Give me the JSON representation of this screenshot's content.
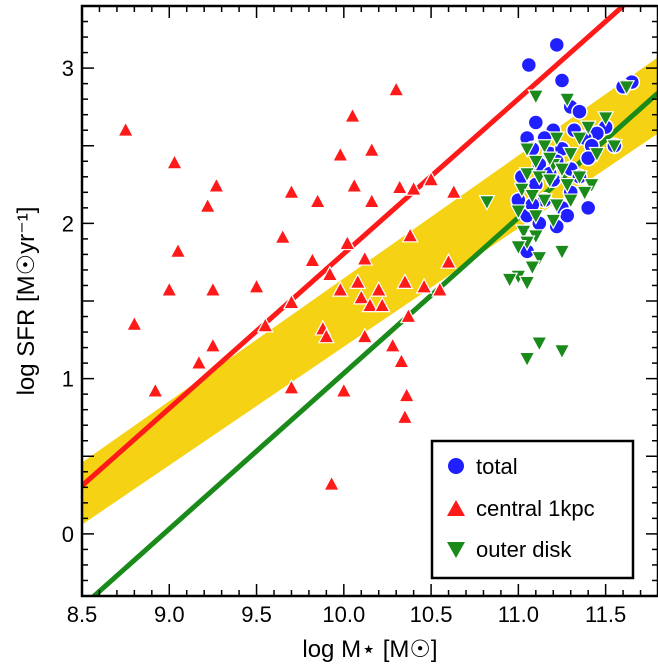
{
  "chart_data": {
    "type": "scatter",
    "title": "",
    "xlabel": "log M⋆ [M☉]",
    "ylabel": "log SFR [M☉yr⁻¹]",
    "xlim": [
      8.5,
      11.8
    ],
    "ylim": [
      -0.4,
      3.4
    ],
    "x_ticks": [
      "8.5",
      "9.0",
      "9.5",
      "10.0",
      "10.5",
      "11.0",
      "11.5"
    ],
    "y_ticks": [
      "0",
      "1",
      "2",
      "3"
    ],
    "legend_position": "bottom-right",
    "colors": {
      "total": "#1f1fff",
      "central": "#ff1a1a",
      "outer": "#1a8a1a",
      "band": "#f5d213",
      "red_line": "#ff1a1a",
      "green_line": "#1a8a1a"
    },
    "band": {
      "lower": [
        [
          8.5,
          0.06
        ],
        [
          11.8,
          2.58
        ]
      ],
      "upper": [
        [
          8.5,
          0.46
        ],
        [
          11.8,
          3.07
        ]
      ]
    },
    "lines": [
      {
        "color": "red",
        "points": [
          [
            8.5,
            0.31
          ],
          [
            11.6,
            3.4
          ]
        ]
      },
      {
        "color": "green",
        "points": [
          [
            8.5,
            -0.47
          ],
          [
            11.8,
            2.84
          ]
        ]
      }
    ],
    "series": [
      {
        "name": "total",
        "marker": "circle",
        "points": [
          [
            11.06,
            3.02
          ],
          [
            11.22,
            3.15
          ],
          [
            11.25,
            2.92
          ],
          [
            11.65,
            2.91
          ],
          [
            11.6,
            2.88
          ],
          [
            11.3,
            2.75
          ],
          [
            11.35,
            2.72
          ],
          [
            11.32,
            2.6
          ],
          [
            11.5,
            2.62
          ],
          [
            11.2,
            2.6
          ],
          [
            11.45,
            2.58
          ],
          [
            11.55,
            2.5
          ],
          [
            11.05,
            2.55
          ],
          [
            11.1,
            2.65
          ],
          [
            11.15,
            2.55
          ],
          [
            11.08,
            2.48
          ],
          [
            11.18,
            2.45
          ],
          [
            11.25,
            2.48
          ],
          [
            11.38,
            2.55
          ],
          [
            11.42,
            2.5
          ],
          [
            11.12,
            2.38
          ],
          [
            11.22,
            2.4
          ],
          [
            11.3,
            2.35
          ],
          [
            11.4,
            2.42
          ],
          [
            11.02,
            2.3
          ],
          [
            11.1,
            2.25
          ],
          [
            11.2,
            2.28
          ],
          [
            11.35,
            2.3
          ],
          [
            11.15,
            2.15
          ],
          [
            11.25,
            2.1
          ],
          [
            11.05,
            2.05
          ],
          [
            11.12,
            2.0
          ],
          [
            11.28,
            2.05
          ],
          [
            11.4,
            2.1
          ],
          [
            11.0,
            2.15
          ],
          [
            11.22,
            1.98
          ],
          [
            11.05,
            1.82
          ],
          [
            11.18,
            2.32
          ],
          [
            11.3,
            2.2
          ],
          [
            11.08,
            2.12
          ]
        ]
      },
      {
        "name": "central 1kpc",
        "marker": "triangle-up",
        "points": [
          [
            8.75,
            2.6
          ],
          [
            9.03,
            2.39
          ],
          [
            9.27,
            2.24
          ],
          [
            9.22,
            2.11
          ],
          [
            9.05,
            1.82
          ],
          [
            8.8,
            1.35
          ],
          [
            8.92,
            0.92
          ],
          [
            9.0,
            1.57
          ],
          [
            9.17,
            1.1
          ],
          [
            9.25,
            1.57
          ],
          [
            9.25,
            1.21
          ],
          [
            9.5,
            1.59
          ],
          [
            9.55,
            1.34
          ],
          [
            9.65,
            1.91
          ],
          [
            9.7,
            2.2
          ],
          [
            9.7,
            1.49
          ],
          [
            9.7,
            0.94
          ],
          [
            9.82,
            1.76
          ],
          [
            9.85,
            2.14
          ],
          [
            9.88,
            1.32
          ],
          [
            9.9,
            1.27
          ],
          [
            9.92,
            1.67
          ],
          [
            9.93,
            0.32
          ],
          [
            9.98,
            2.44
          ],
          [
            9.98,
            1.57
          ],
          [
            10.0,
            0.92
          ],
          [
            10.02,
            1.87
          ],
          [
            10.05,
            2.69
          ],
          [
            10.06,
            2.24
          ],
          [
            10.08,
            1.62
          ],
          [
            10.1,
            1.52
          ],
          [
            10.12,
            1.77
          ],
          [
            10.12,
            1.27
          ],
          [
            10.15,
            1.47
          ],
          [
            10.16,
            2.47
          ],
          [
            10.16,
            2.14
          ],
          [
            10.2,
            1.57
          ],
          [
            10.22,
            1.47
          ],
          [
            10.28,
            1.21
          ],
          [
            10.3,
            2.86
          ],
          [
            10.32,
            2.23
          ],
          [
            10.33,
            1.11
          ],
          [
            10.35,
            1.62
          ],
          [
            10.35,
            0.75
          ],
          [
            10.36,
            0.89
          ],
          [
            10.37,
            1.4
          ],
          [
            10.4,
            2.22
          ],
          [
            10.46,
            1.59
          ],
          [
            10.5,
            2.28
          ],
          [
            10.55,
            1.57
          ],
          [
            10.6,
            1.75
          ],
          [
            10.63,
            2.2
          ],
          [
            10.38,
            1.92
          ]
        ]
      },
      {
        "name": "outer disk",
        "marker": "triangle-down",
        "points": [
          [
            11.1,
            2.82
          ],
          [
            11.28,
            2.8
          ],
          [
            11.62,
            2.88
          ],
          [
            11.5,
            2.68
          ],
          [
            11.4,
            2.62
          ],
          [
            11.35,
            2.55
          ],
          [
            11.22,
            2.55
          ],
          [
            11.15,
            2.5
          ],
          [
            11.05,
            2.48
          ],
          [
            11.3,
            2.45
          ],
          [
            11.45,
            2.45
          ],
          [
            11.55,
            2.5
          ],
          [
            11.1,
            2.4
          ],
          [
            11.2,
            2.38
          ],
          [
            11.25,
            2.35
          ],
          [
            11.35,
            2.3
          ],
          [
            11.42,
            2.25
          ],
          [
            11.05,
            2.32
          ],
          [
            11.12,
            2.3
          ],
          [
            11.18,
            2.28
          ],
          [
            11.28,
            2.25
          ],
          [
            11.38,
            2.2
          ],
          [
            11.02,
            2.22
          ],
          [
            11.08,
            2.18
          ],
          [
            11.15,
            2.15
          ],
          [
            11.22,
            2.12
          ],
          [
            11.3,
            2.15
          ],
          [
            11.0,
            2.08
          ],
          [
            11.1,
            2.05
          ],
          [
            11.2,
            2.02
          ],
          [
            11.03,
            1.95
          ],
          [
            11.1,
            1.92
          ],
          [
            11.05,
            1.88
          ],
          [
            11.0,
            1.85
          ],
          [
            11.12,
            1.78
          ],
          [
            11.08,
            1.72
          ],
          [
            11.25,
            1.82
          ],
          [
            10.82,
            2.14
          ],
          [
            11.0,
            1.66
          ],
          [
            11.05,
            1.62
          ],
          [
            11.05,
            1.13
          ],
          [
            11.12,
            1.23
          ],
          [
            11.25,
            1.18
          ],
          [
            10.95,
            1.64
          ],
          [
            11.18,
            2.42
          ]
        ]
      }
    ]
  }
}
